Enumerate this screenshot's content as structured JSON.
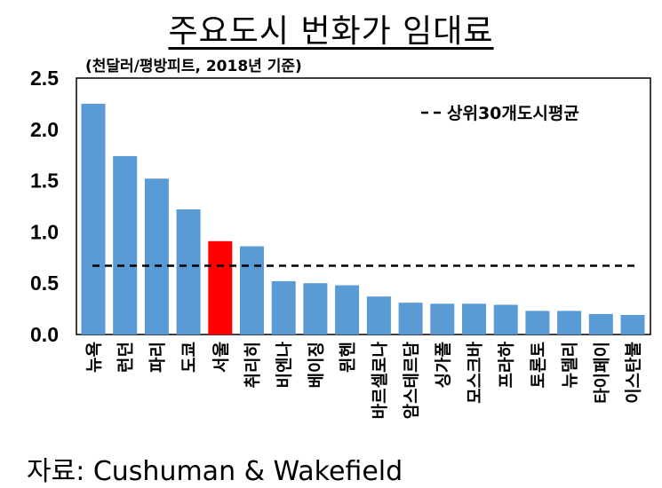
{
  "chart_data": {
    "type": "bar",
    "title": "주요도시 번화가 임대료",
    "unit_label": "(천달러/평방피트, 2018년 기준)",
    "categories": [
      "뉴욕",
      "런던",
      "파리",
      "도쿄",
      "서울",
      "취리히",
      "비엔나",
      "베이징",
      "뮌헨",
      "바르셀로나",
      "암스테르담",
      "싱가폴",
      "모스크바",
      "프라하",
      "토론토",
      "뉴델리",
      "타이페이",
      "이스탄불"
    ],
    "values": [
      2.25,
      1.74,
      1.52,
      1.22,
      0.91,
      0.86,
      0.52,
      0.5,
      0.48,
      0.37,
      0.31,
      0.3,
      0.3,
      0.29,
      0.23,
      0.23,
      0.2,
      0.19
    ],
    "bar_color": "#5b9bd5",
    "highlight_category": "서울",
    "highlight_color": "#ff0000",
    "reference_line": {
      "label": "상위30개도시평균",
      "value": 0.67,
      "style": "dashed"
    },
    "ylim": [
      0,
      2.5
    ],
    "yticks": [
      "0.0",
      "0.5",
      "1.0",
      "1.5",
      "2.0",
      "2.5"
    ],
    "xlabel": "",
    "ylabel": "",
    "grid": false,
    "legend_position": "top-right"
  },
  "source": "자료: Cushuman & Wakefield"
}
